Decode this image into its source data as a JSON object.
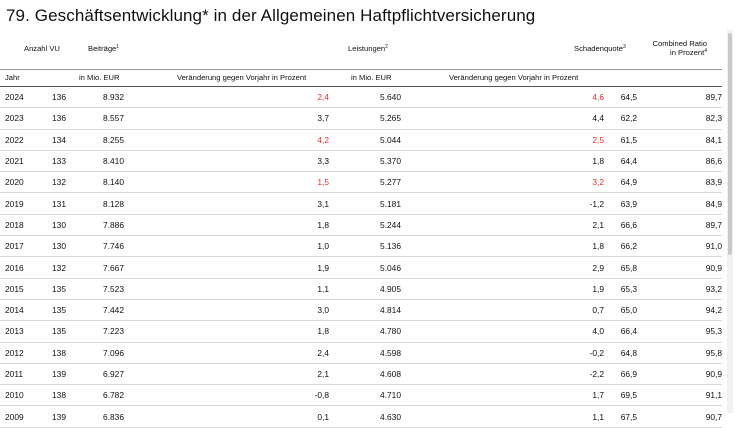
{
  "title": "79. Geschäftsentwicklung* in der Allgemeinen Haftpflichtversicherung",
  "headers": {
    "anzahl_vu": "Anzahl VU",
    "beitraege": "Beiträge",
    "beitraege_sup": "1",
    "leistungen": "Leistungen",
    "leistungen_sup": "2",
    "schadenquote": "Schadenquote",
    "schadenquote_sup": "3",
    "combined_ratio_line1": "Combined Ratio",
    "combined_ratio_line2": "in Prozent",
    "combined_ratio_sup": "4",
    "jahr": "Jahr",
    "in_mio_eur_1": "in Mio. EUR",
    "veraenderung_1": "Veränderung gegen Vorjahr in Prozent",
    "in_mio_eur_2": "in Mio. EUR",
    "veraenderung_2": "Veränderung gegen Vorjahr in Prozent"
  },
  "accent_red": "#e0312f",
  "rows": [
    {
      "jahr": "2024",
      "vu": "136",
      "beitraege": "8.932",
      "bei_change": "2,4",
      "bei_red": true,
      "leistungen": "5.640",
      "lei_change": "4,6",
      "lei_red": true,
      "sq": "64,5",
      "cr": "89,7"
    },
    {
      "jahr": "2023",
      "vu": "136",
      "beitraege": "8.557",
      "bei_change": "3,7",
      "bei_red": false,
      "leistungen": "5.265",
      "lei_change": "4,4",
      "lei_red": false,
      "sq": "62,2",
      "cr": "82,3"
    },
    {
      "jahr": "2022",
      "vu": "134",
      "beitraege": "8.255",
      "bei_change": "4,2",
      "bei_red": true,
      "leistungen": "5.044",
      "lei_change": "2,5",
      "lei_red": true,
      "sq": "61,5",
      "cr": "84,1"
    },
    {
      "jahr": "2021",
      "vu": "133",
      "beitraege": "8.410",
      "bei_change": "3,3",
      "bei_red": false,
      "leistungen": "5.370",
      "lei_change": "1,8",
      "lei_red": false,
      "sq": "64,4",
      "cr": "86,6"
    },
    {
      "jahr": "2020",
      "vu": "132",
      "beitraege": "8.140",
      "bei_change": "1,5",
      "bei_red": true,
      "leistungen": "5.277",
      "lei_change": "3,2",
      "lei_red": true,
      "sq": "64,9",
      "cr": "83,9"
    },
    {
      "jahr": "2019",
      "vu": "131",
      "beitraege": "8.128",
      "bei_change": "3,1",
      "bei_red": false,
      "leistungen": "5.181",
      "lei_change": "-1,2",
      "lei_red": false,
      "sq": "63,9",
      "cr": "84,9"
    },
    {
      "jahr": "2018",
      "vu": "130",
      "beitraege": "7.886",
      "bei_change": "1,8",
      "bei_red": false,
      "leistungen": "5.244",
      "lei_change": "2,1",
      "lei_red": false,
      "sq": "66,6",
      "cr": "89,7"
    },
    {
      "jahr": "2017",
      "vu": "130",
      "beitraege": "7.746",
      "bei_change": "1,0",
      "bei_red": false,
      "leistungen": "5.136",
      "lei_change": "1,8",
      "lei_red": false,
      "sq": "66,2",
      "cr": "91,0"
    },
    {
      "jahr": "2016",
      "vu": "132",
      "beitraege": "7.667",
      "bei_change": "1,9",
      "bei_red": false,
      "leistungen": "5.046",
      "lei_change": "2,9",
      "lei_red": false,
      "sq": "65,8",
      "cr": "90,9"
    },
    {
      "jahr": "2015",
      "vu": "135",
      "beitraege": "7.523",
      "bei_change": "1,1",
      "bei_red": false,
      "leistungen": "4.905",
      "lei_change": "1,9",
      "lei_red": false,
      "sq": "65,3",
      "cr": "93,2"
    },
    {
      "jahr": "2014",
      "vu": "135",
      "beitraege": "7.442",
      "bei_change": "3,0",
      "bei_red": false,
      "leistungen": "4.814",
      "lei_change": "0,7",
      "lei_red": false,
      "sq": "65,0",
      "cr": "94,2"
    },
    {
      "jahr": "2013",
      "vu": "135",
      "beitraege": "7.223",
      "bei_change": "1,8",
      "bei_red": false,
      "leistungen": "4.780",
      "lei_change": "4,0",
      "lei_red": false,
      "sq": "66,4",
      "cr": "95,3"
    },
    {
      "jahr": "2012",
      "vu": "138",
      "beitraege": "7.096",
      "bei_change": "2,4",
      "bei_red": false,
      "leistungen": "4.598",
      "lei_change": "-0,2",
      "lei_red": false,
      "sq": "64,8",
      "cr": "95,8"
    },
    {
      "jahr": "2011",
      "vu": "139",
      "beitraege": "6.927",
      "bei_change": "2,1",
      "bei_red": false,
      "leistungen": "4.608",
      "lei_change": "-2,2",
      "lei_red": false,
      "sq": "66,9",
      "cr": "90,9"
    },
    {
      "jahr": "2010",
      "vu": "138",
      "beitraege": "6.782",
      "bei_change": "-0,8",
      "bei_red": false,
      "leistungen": "4.710",
      "lei_change": "1,7",
      "lei_red": false,
      "sq": "69,5",
      "cr": "91,1"
    },
    {
      "jahr": "2009",
      "vu": "139",
      "beitraege": "6.836",
      "bei_change": "0,1",
      "bei_red": false,
      "leistungen": "4.630",
      "lei_change": "1,1",
      "lei_red": false,
      "sq": "67,5",
      "cr": "90,7"
    }
  ]
}
